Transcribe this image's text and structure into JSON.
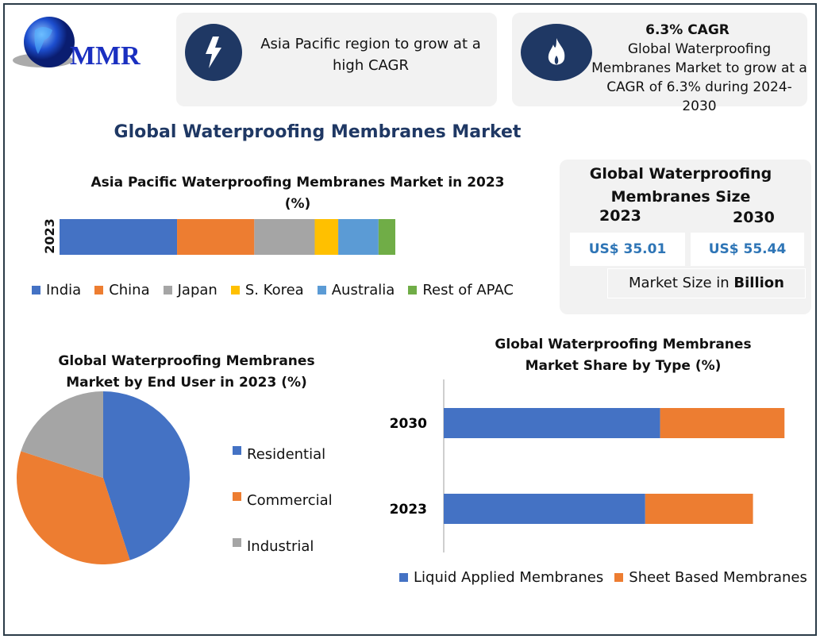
{
  "logo": {
    "text": "MMR"
  },
  "card1": {
    "text_line1": "Asia Pacific region to grow at a",
    "text_line2": "high CAGR",
    "icon": "lightning-icon"
  },
  "card2": {
    "heading": "6.3% CAGR",
    "text_line1": "Global Waterproofing",
    "text_line2": "Membranes Market to grow at a",
    "text_line3": "CAGR of 6.3% during 2024-2030",
    "icon": "flame-icon"
  },
  "main_title": "Global Waterproofing Membranes Market",
  "size_box": {
    "title_line1": "Global Waterproofing",
    "title_line2": "Membranes Size",
    "year1": "2023",
    "year2": "2030",
    "value1": "US$ 35.01",
    "value2": "US$ 55.44",
    "note_prefix": "Market Size in ",
    "note_bold": "Billion"
  },
  "colors": {
    "blue": "#4472c4",
    "orange": "#ed7d31",
    "gray": "#a5a5a5",
    "yellow": "#ffc000",
    "lightblue": "#5b9bd5",
    "green": "#70ad47",
    "navy": "#1f3864",
    "value": "#2e75b6"
  },
  "chart_data": [
    {
      "type": "bar",
      "stacked": true,
      "orientation": "horizontal",
      "title_line1": "Asia Pacific Waterproofing Membranes Market in 2023",
      "title_line2": "(%)",
      "categories": [
        "2023"
      ],
      "series": [
        {
          "name": "India",
          "values": [
            35
          ],
          "color": "#4472c4"
        },
        {
          "name": "China",
          "values": [
            23
          ],
          "color": "#ed7d31"
        },
        {
          "name": "Japan",
          "values": [
            18
          ],
          "color": "#a5a5a5"
        },
        {
          "name": "S. Korea",
          "values": [
            7
          ],
          "color": "#ffc000"
        },
        {
          "name": "Australia",
          "values": [
            12
          ],
          "color": "#5b9bd5"
        },
        {
          "name": "Rest of APAC",
          "values": [
            5
          ],
          "color": "#70ad47"
        }
      ],
      "legend": "bottom"
    },
    {
      "type": "pie",
      "title_line1": "Global Waterproofing Membranes",
      "title_line2": "Market by End User in 2023 (%)",
      "labels": [
        "Residential",
        "Commercial",
        "Industrial"
      ],
      "values": [
        45,
        35,
        20
      ],
      "colors": [
        "#4472c4",
        "#ed7d31",
        "#a5a5a5"
      ],
      "legend": "right"
    },
    {
      "type": "bar",
      "stacked": true,
      "orientation": "horizontal",
      "title_line1": "Global Waterproofing Membranes",
      "title_line2": "Market Share by Type (%)",
      "categories": [
        "2030",
        "2023"
      ],
      "xlim": [
        0,
        45
      ],
      "series": [
        {
          "name": "Liquid Applied Membranes",
          "values": [
            26.1,
            24.3
          ],
          "color": "#4472c4"
        },
        {
          "name": "Sheet Based Membranes",
          "values": [
            15.0,
            13.0
          ],
          "color": "#ed7d31"
        }
      ],
      "legend": "bottom"
    }
  ]
}
